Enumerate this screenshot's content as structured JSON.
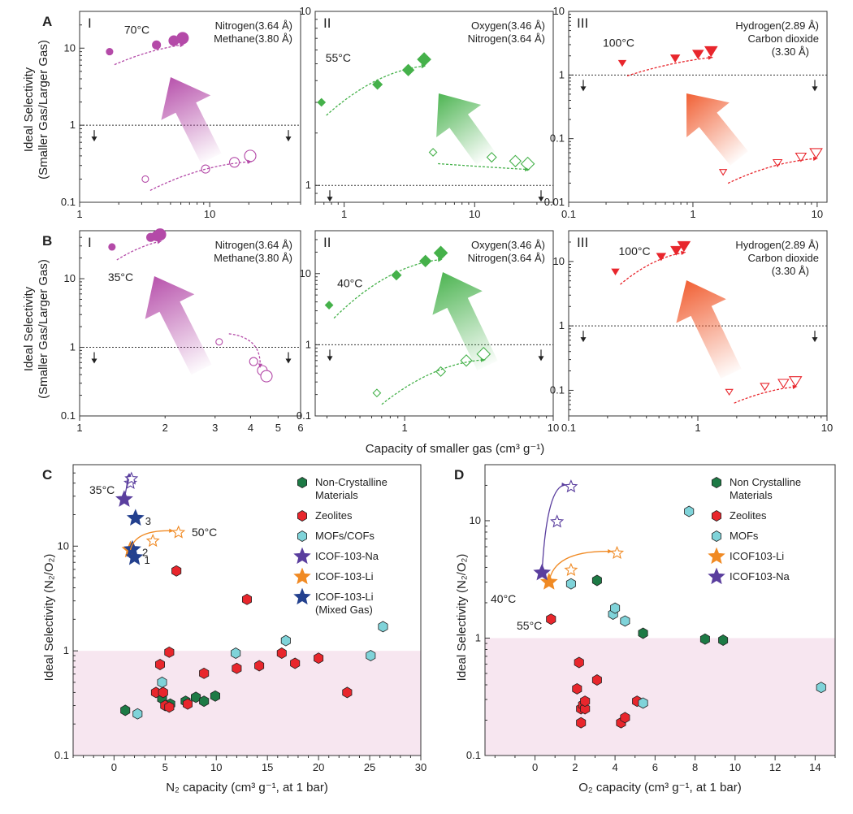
{
  "ab": {
    "ylabel_line1": "Ideal Selectivity",
    "ylabel_line2": "(Smaller Gas/Larger Gas)",
    "xlabel": "Capacity of smaller gas (cm³ g⁻¹)"
  },
  "cd": {
    "ylabel": "Ideal Selectivity (N₂/O₂)"
  },
  "chart_data": [
    {
      "id": "A-I",
      "type": "scatter",
      "panel_letter": "A",
      "roman": "I",
      "gases": [
        "Nitrogen(3.64 Å)",
        "Methane(3.80 Å)"
      ],
      "temperature": "70°C",
      "color": "#b44aa8",
      "xscale": "log",
      "xlim": [
        1,
        50
      ],
      "xticks": [
        1,
        10
      ],
      "yscale": "log",
      "ylim": [
        0.1,
        30
      ],
      "yticks": [
        0.1,
        1,
        10
      ],
      "reference_line": 1,
      "series": [
        {
          "name": "filled",
          "fill": true,
          "x": [
            1.7,
            3.9,
            5.3,
            6.2
          ],
          "y": [
            9,
            11,
            12.5,
            13.5
          ],
          "s": [
            4,
            5,
            6,
            7
          ]
        },
        {
          "name": "open",
          "fill": false,
          "x": [
            3.2,
            9.3,
            15.5,
            20.5
          ],
          "y": [
            0.2,
            0.27,
            0.33,
            0.4
          ],
          "s": [
            4,
            5,
            6,
            7
          ]
        }
      ]
    },
    {
      "id": "A-II",
      "type": "scatter",
      "roman": "II",
      "gases": [
        "Oxygen(3.46 Å)",
        "Nitrogen(3.64 Å)"
      ],
      "temperature": "55°C",
      "color": "#45b14a",
      "xscale": "log",
      "xlim": [
        0.6,
        40
      ],
      "xticks": [
        1,
        10
      ],
      "yscale": "log",
      "ylim": [
        0.8,
        10
      ],
      "yticks": [
        1,
        10
      ],
      "reference_line": 1,
      "series": [
        {
          "name": "filled",
          "fill": true,
          "x": [
            0.67,
            1.8,
            3.1,
            4.1
          ],
          "y": [
            3.0,
            3.8,
            4.6,
            5.3
          ],
          "s": [
            4,
            5,
            6,
            7
          ]
        },
        {
          "name": "open",
          "fill": false,
          "x": [
            4.8,
            13.5,
            20.5,
            25.5
          ],
          "y": [
            1.55,
            1.45,
            1.38,
            1.33
          ],
          "s": [
            4,
            5,
            6,
            7
          ]
        }
      ]
    },
    {
      "id": "A-III",
      "type": "scatter",
      "roman": "III",
      "gases": [
        "Hydrogen(2.89 Å)",
        "Carbon dioxide",
        "(3.30 Å)"
      ],
      "temperature": "100°C",
      "color": "#e8262c",
      "xscale": "log",
      "xlim": [
        0.1,
        12
      ],
      "xticks": [
        0.1,
        1,
        10
      ],
      "yscale": "log",
      "ylim": [
        0.01,
        10
      ],
      "yticks": [
        0.01,
        0.1,
        1,
        10
      ],
      "reference_line": 1,
      "series": [
        {
          "name": "filled",
          "fill": true,
          "x": [
            0.27,
            0.72,
            1.1,
            1.4
          ],
          "y": [
            1.55,
            1.85,
            2.15,
            2.4
          ],
          "s": [
            4,
            5,
            6,
            7
          ]
        },
        {
          "name": "open",
          "fill": false,
          "x": [
            1.75,
            4.8,
            7.4,
            9.8
          ],
          "y": [
            0.03,
            0.042,
            0.052,
            0.06
          ],
          "s": [
            4,
            5,
            6,
            7
          ]
        }
      ]
    },
    {
      "id": "B-I",
      "type": "scatter",
      "panel_letter": "B",
      "roman": "I",
      "gases": [
        "Nitrogen(3.64 Å)",
        "Methane(3.80 Å)"
      ],
      "temperature": "35°C",
      "color": "#b44aa8",
      "xscale": "log",
      "xlim": [
        1,
        6
      ],
      "xticks": [
        1,
        2,
        3,
        4,
        5,
        6
      ],
      "yscale": "log",
      "ylim": [
        0.1,
        50
      ],
      "yticks": [
        0.1,
        1,
        10
      ],
      "reference_line": 1,
      "series": [
        {
          "name": "filled",
          "fill": true,
          "x": [
            1.3,
            1.78,
            1.87,
            1.92
          ],
          "y": [
            29,
            40,
            42,
            44
          ],
          "s": [
            4,
            5,
            6,
            7
          ]
        },
        {
          "name": "open",
          "fill": false,
          "x": [
            3.1,
            4.1,
            4.4,
            4.55
          ],
          "y": [
            1.2,
            0.62,
            0.46,
            0.38
          ],
          "s": [
            4,
            5,
            6,
            7
          ]
        }
      ]
    },
    {
      "id": "B-II",
      "type": "scatter",
      "roman": "II",
      "gases": [
        "Oxygen(3.46 Å)",
        "Nitrogen(3.64 Å)"
      ],
      "temperature": "40°C",
      "color": "#45b14a",
      "xscale": "log",
      "xlim": [
        0.25,
        10
      ],
      "xticks": [
        1,
        10
      ],
      "yscale": "log",
      "ylim": [
        0.1,
        40
      ],
      "yticks": [
        0.1,
        1,
        10
      ],
      "reference_line": 1,
      "series": [
        {
          "name": "filled",
          "fill": true,
          "x": [
            0.31,
            0.88,
            1.38,
            1.75
          ],
          "y": [
            3.6,
            9.5,
            15,
            19.5
          ],
          "s": [
            4,
            5,
            6,
            7
          ]
        },
        {
          "name": "open",
          "fill": false,
          "x": [
            0.65,
            1.75,
            2.6,
            3.4
          ],
          "y": [
            0.21,
            0.42,
            0.6,
            0.74
          ],
          "s": [
            4,
            5,
            6,
            7
          ]
        }
      ]
    },
    {
      "id": "B-III",
      "type": "scatter",
      "roman": "III",
      "gases": [
        "Hydrogen(2.89 Å)",
        "Carbon dioxide",
        "(3.30 Å)"
      ],
      "temperature": "100°C",
      "color": "#e8262c",
      "xscale": "log",
      "xlim": [
        0.1,
        10
      ],
      "xticks": [
        0.1,
        1,
        10
      ],
      "yscale": "log",
      "ylim": [
        0.04,
        30
      ],
      "yticks": [
        0.1,
        1,
        10
      ],
      "reference_line": 1,
      "series": [
        {
          "name": "filled",
          "fill": true,
          "x": [
            0.23,
            0.52,
            0.68,
            0.78
          ],
          "y": [
            7,
            12,
            15,
            17.5
          ],
          "s": [
            4,
            5,
            6,
            7
          ]
        },
        {
          "name": "open",
          "fill": false,
          "x": [
            1.75,
            3.3,
            4.6,
            5.7
          ],
          "y": [
            0.095,
            0.115,
            0.13,
            0.14
          ],
          "s": [
            4,
            5,
            6,
            7
          ]
        }
      ]
    },
    {
      "id": "C",
      "type": "scatter",
      "panel_letter": "C",
      "xlabel": "N₂ capacity (cm³ g⁻¹, at 1 bar)",
      "xlim": [
        -4,
        30
      ],
      "xticks": [
        0,
        5,
        10,
        15,
        20,
        25,
        30
      ],
      "yscale": "log",
      "ylim": [
        0.1,
        60
      ],
      "yticks": [
        0.1,
        1,
        10
      ],
      "shaded_below": 1,
      "shade_color": "#f7e6f0",
      "series": [
        {
          "name": "Non-Crystalline Materials",
          "marker": "hex",
          "color": "#1d7a45",
          "x": [
            1.1,
            4.7,
            5.5,
            7.0,
            8.0,
            8.8,
            9.9
          ],
          "y": [
            0.27,
            0.35,
            0.31,
            0.33,
            0.36,
            0.33,
            0.37
          ]
        },
        {
          "name": "Zeolites",
          "marker": "hex",
          "color": "#e8262c",
          "x": [
            4.1,
            4.5,
            4.8,
            5.0,
            5.4,
            5.4,
            6.1,
            7.2,
            8.8,
            12.0,
            13.0,
            14.2,
            16.4,
            17.7,
            20.0,
            22.8
          ],
          "y": [
            0.4,
            0.74,
            0.4,
            0.3,
            0.97,
            0.29,
            5.8,
            0.31,
            0.61,
            0.68,
            3.1,
            0.72,
            0.95,
            0.76,
            0.85,
            0.4
          ]
        },
        {
          "name": "MOFs/COFs",
          "marker": "hex",
          "color": "#7fd3d9",
          "x": [
            2.3,
            4.7,
            11.9,
            16.8,
            25.1,
            26.3
          ],
          "y": [
            0.25,
            0.5,
            0.95,
            1.25,
            0.9,
            1.7
          ]
        },
        {
          "name": "ICOF-103-Na",
          "marker": "star",
          "color": "#5a3e9e",
          "x": [
            1.0,
            1.6,
            1.7
          ],
          "y": [
            28,
            40,
            44
          ],
          "fill": [
            true,
            false,
            false
          ]
        },
        {
          "name": "ICOF-103-Li",
          "marker": "star",
          "color": "#f08a24",
          "x": [
            1.6,
            3.8,
            6.3
          ],
          "y": [
            9.2,
            11.2,
            13.5
          ],
          "fill": [
            true,
            false,
            false
          ]
        },
        {
          "name": "ICOF-103-Li (Mixed Gas)",
          "marker": "star",
          "color": "#23408e",
          "x": [
            2.1,
            1.8,
            2.0
          ],
          "y": [
            18.5,
            9.3,
            7.8
          ],
          "labels": [
            "3",
            "2",
            "1"
          ]
        }
      ],
      "legend": [
        "Non-Crystalline",
        "Materials",
        "Zeolites",
        "MOFs/COFs",
        "ICOF-103-Na",
        "ICOF-103-Li",
        "ICOF-103-Li",
        "(Mixed Gas)"
      ],
      "annotations": [
        "35°C",
        "50°C"
      ]
    },
    {
      "id": "D",
      "type": "scatter",
      "panel_letter": "D",
      "xlabel": "O₂ capacity (cm³ g⁻¹, at 1 bar)",
      "xlim": [
        -2.5,
        15
      ],
      "xticks": [
        0,
        2,
        4,
        6,
        8,
        10,
        12,
        14
      ],
      "yscale": "log",
      "ylim": [
        0.1,
        30
      ],
      "yticks": [
        0.1,
        1,
        10
      ],
      "shaded_below": 1,
      "shade_color": "#f7e6f0",
      "series": [
        {
          "name": "Non Crystalline Materials",
          "marker": "hex",
          "color": "#1d7a45",
          "x": [
            3.1,
            5.4,
            8.5,
            9.4
          ],
          "y": [
            3.1,
            1.1,
            0.98,
            0.96
          ]
        },
        {
          "name": "Zeolites",
          "marker": "hex",
          "color": "#e8262c",
          "x": [
            0.8,
            2.1,
            2.2,
            2.3,
            2.3,
            2.4,
            2.5,
            2.5,
            3.1,
            4.3,
            4.5,
            5.1
          ],
          "y": [
            1.45,
            0.37,
            0.62,
            0.19,
            0.25,
            0.27,
            0.25,
            0.29,
            0.44,
            0.19,
            0.21,
            0.29
          ]
        },
        {
          "name": "MOFs",
          "marker": "hex",
          "color": "#7fd3d9",
          "x": [
            1.8,
            3.9,
            4.0,
            4.5,
            5.4,
            7.7,
            14.3
          ],
          "y": [
            2.9,
            1.6,
            1.8,
            1.4,
            0.28,
            12.0,
            0.38
          ]
        },
        {
          "name": "ICOF103-Li",
          "marker": "star",
          "color": "#f08a24",
          "x": [
            0.7,
            1.8,
            4.1
          ],
          "y": [
            3.0,
            3.8,
            5.3
          ],
          "fill": [
            true,
            false,
            false
          ]
        },
        {
          "name": "ICOF103-Na",
          "marker": "star",
          "color": "#5a3e9e",
          "x": [
            0.35,
            1.1,
            1.8
          ],
          "y": [
            3.6,
            9.8,
            19.5
          ],
          "fill": [
            true,
            false,
            false
          ]
        }
      ],
      "legend": [
        "Non Crystalline",
        "Materials",
        "Zeolites",
        "MOFs",
        "ICOF103-Li",
        "ICOF103-Na"
      ],
      "annotations": [
        "40°C",
        "55°C"
      ]
    }
  ]
}
